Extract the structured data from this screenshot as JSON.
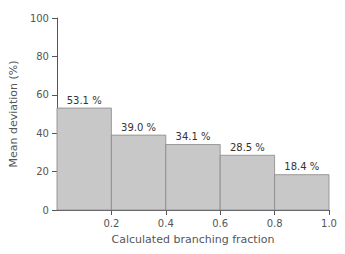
{
  "chart_data": {
    "type": "histogram",
    "bins": [
      0.0,
      0.2,
      0.4,
      0.6,
      0.8,
      1.0
    ],
    "values": [
      53.1,
      39.0,
      34.1,
      28.5,
      18.4
    ],
    "value_labels": [
      "53.1 %",
      "39.0 %",
      "34.1 %",
      "28.5 %",
      "18.4 %"
    ],
    "data_labels": true,
    "color": "#c8c8c8",
    "xlabel": "Calculated branching fraction",
    "ylabel": "Mean deviation (%)",
    "xlim": [
      0.0,
      1.0
    ],
    "ylim": [
      0,
      100
    ],
    "xticks": [
      0.2,
      0.4,
      0.6,
      0.8,
      {
        "value": 1.0,
        "label": "1.0"
      }
    ],
    "yticks": [
      0,
      20,
      40,
      60,
      80,
      100
    ],
    "grid": false
  }
}
